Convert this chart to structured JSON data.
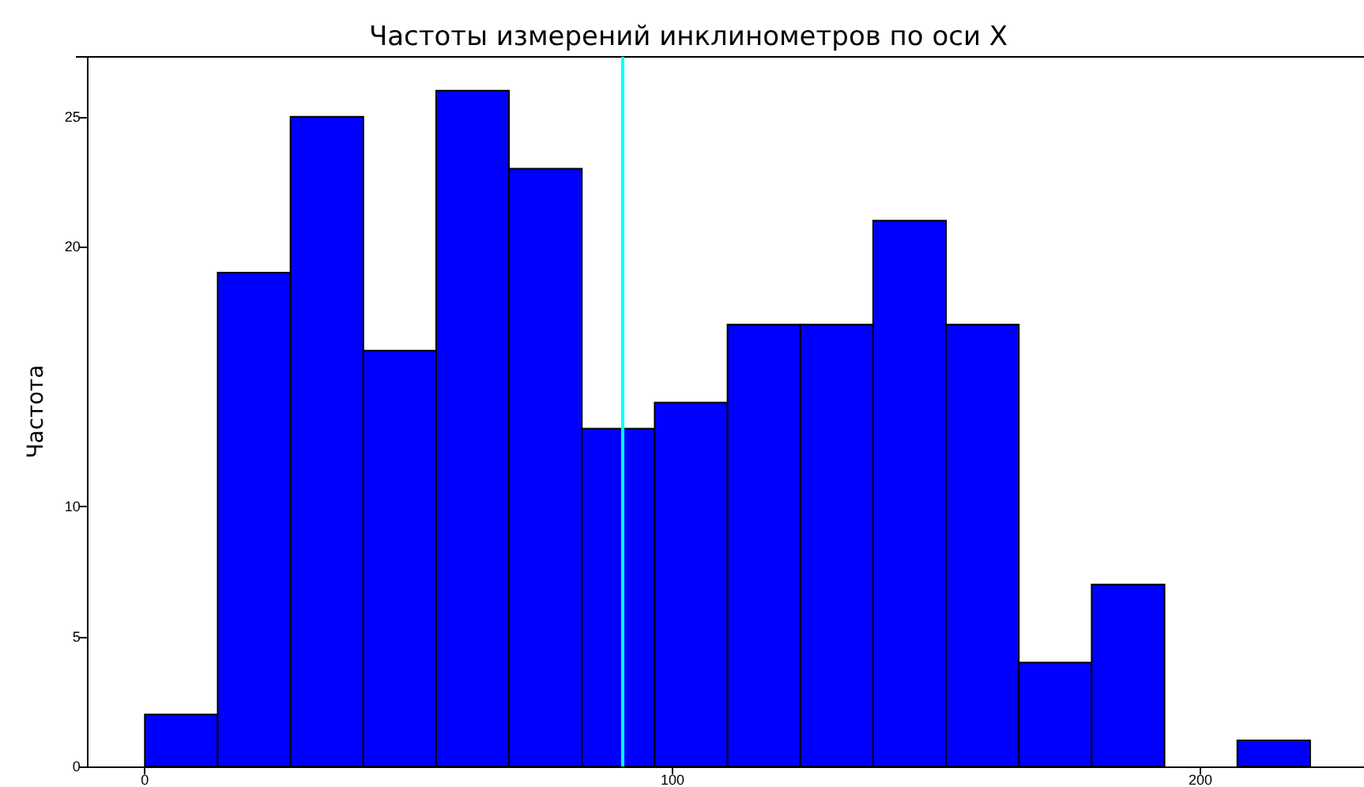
{
  "chart_data": {
    "type": "histogram",
    "title": "Частоты измерений инклинометров по оси X",
    "ylabel": "Частота",
    "bins": [
      0,
      13.8,
      27.6,
      41.4,
      55.2,
      69,
      82.8,
      96.6,
      110.4,
      124.2,
      138,
      151.8,
      165.6,
      179.4,
      193.2,
      207,
      220.8
    ],
    "values": [
      2,
      19,
      25,
      16,
      26,
      23,
      13,
      14,
      17,
      17,
      21,
      17,
      4,
      7,
      0,
      1
    ],
    "color": "#0000ff",
    "xlim": [
      -11,
      231
    ],
    "xticks": [
      0,
      100,
      200
    ],
    "ylim": [
      0,
      27.3
    ],
    "yticks": [
      0,
      5,
      10,
      20,
      25
    ],
    "ref_lines": [
      {
        "axis": "x",
        "value": 90.6,
        "color": "#00ffff",
        "line_style": "solid"
      }
    ],
    "grid": false
  }
}
